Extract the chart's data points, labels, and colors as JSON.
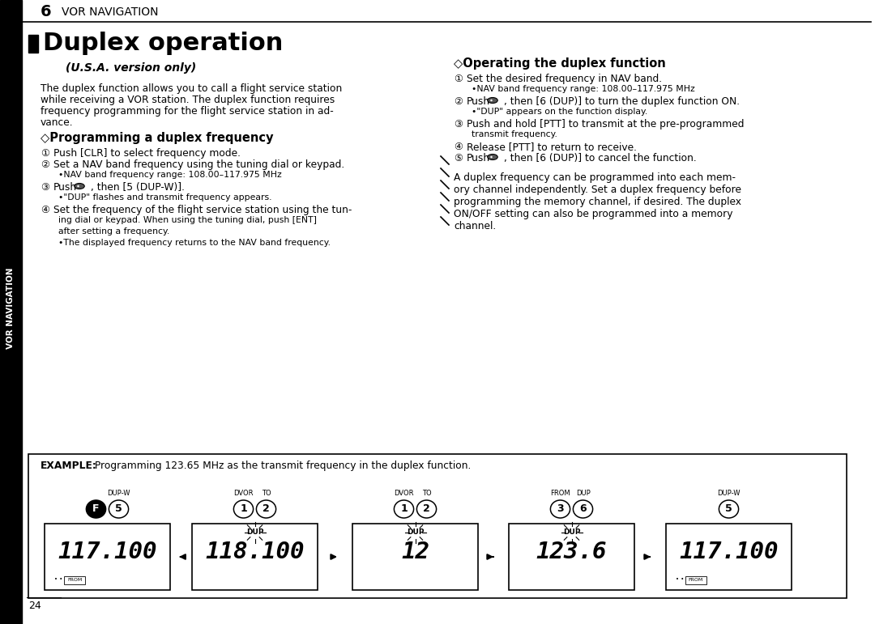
{
  "bg_color": "#ffffff",
  "sidebar_bg": "#000000",
  "sidebar_text": "VOR NAVIGATION",
  "sidebar_text_color": "#ffffff",
  "chapter_number": "6",
  "chapter_title": "VOR NAVIGATION",
  "page_number": "24",
  "title": "Duplex operation",
  "subtitle": "(U.S.A. version only)",
  "intro_lines": [
    "The duplex function allows you to call a flight service station",
    "while receiving a VOR station. The duplex function requires",
    "frequency programming for the flight service station in ad-",
    "vance."
  ],
  "s1_title": "◇Programming a duplex frequency",
  "s2_title": "◇Operating the duplex function",
  "note_lines": [
    "A duplex frequency can be programmed into each mem-",
    "ory channel independently. Set a duplex frequency before",
    "programming the memory channel, if desired. The duplex",
    "ON/OFF setting can also be programmed into a memory",
    "channel."
  ],
  "example_bold": "EXAMPLE:",
  "example_rest": " Programming 123.65 MHz as the transmit frequency in the duplex function.",
  "displays": [
    {
      "text": "117.100",
      "has_from": true,
      "has_dup": false,
      "buttons": [
        {
          "label": "F",
          "black_fill": true,
          "top_label": ""
        },
        {
          "label": "5",
          "black_fill": false,
          "top_label": "DUP-W"
        }
      ]
    },
    {
      "text": "118.100",
      "has_from": false,
      "has_dup": true,
      "buttons": [
        {
          "label": "1",
          "black_fill": false,
          "top_label": "DVOR"
        },
        {
          "label": "2",
          "black_fill": false,
          "top_label": "TO"
        }
      ]
    },
    {
      "text": "12",
      "has_from": false,
      "has_dup": true,
      "buttons": [
        {
          "label": "1",
          "black_fill": false,
          "top_label": "DVOR"
        },
        {
          "label": "2",
          "black_fill": false,
          "top_label": "TO"
        }
      ]
    },
    {
      "text": "123.6",
      "has_from": false,
      "has_dup": true,
      "buttons": [
        {
          "label": "3",
          "black_fill": false,
          "top_label": "FROM"
        },
        {
          "label": "6",
          "black_fill": false,
          "top_label": "DUP"
        }
      ]
    },
    {
      "text": "117.100",
      "has_from": true,
      "has_dup": false,
      "buttons": [
        {
          "label": "5",
          "black_fill": false,
          "top_label": "DUP-W"
        }
      ]
    }
  ]
}
